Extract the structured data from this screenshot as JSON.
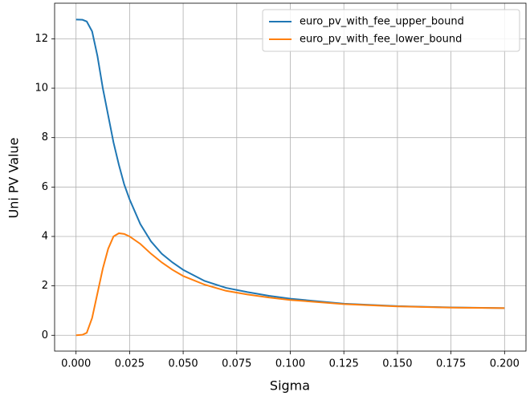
{
  "chart_data": {
    "type": "line",
    "xlabel": "Sigma",
    "ylabel": "Uni PV Value",
    "x": [
      0,
      0.003,
      0.005,
      0.0075,
      0.01,
      0.0125,
      0.015,
      0.0175,
      0.02,
      0.0225,
      0.025,
      0.03,
      0.035,
      0.04,
      0.045,
      0.05,
      0.06,
      0.07,
      0.08,
      0.09,
      0.1,
      0.125,
      0.15,
      0.175,
      0.2
    ],
    "series": [
      {
        "name": "euro_pv_with_fee_upper_bound",
        "color": "#1f77b4",
        "values": [
          12.78,
          12.77,
          12.7,
          12.3,
          11.3,
          10.0,
          8.9,
          7.8,
          6.9,
          6.1,
          5.5,
          4.5,
          3.8,
          3.3,
          2.95,
          2.65,
          2.2,
          1.92,
          1.75,
          1.6,
          1.48,
          1.28,
          1.18,
          1.13,
          1.1
        ]
      },
      {
        "name": "euro_pv_with_fee_lower_bound",
        "color": "#ff7f0e",
        "values": [
          0,
          0.02,
          0.1,
          0.7,
          1.7,
          2.7,
          3.5,
          4.0,
          4.13,
          4.1,
          4.0,
          3.7,
          3.3,
          2.95,
          2.65,
          2.4,
          2.05,
          1.8,
          1.65,
          1.53,
          1.43,
          1.26,
          1.17,
          1.12,
          1.1
        ]
      }
    ],
    "xlim": [
      -0.01,
      0.21
    ],
    "xticks": [
      {
        "value": 0,
        "label": "0.000"
      },
      0.025,
      {
        "value": 0.05,
        "label": "0.050"
      },
      0.075,
      {
        "value": 0.1,
        "label": "0.100"
      },
      0.125,
      {
        "value": 0.15,
        "label": "0.150"
      },
      0.175,
      {
        "value": 0.2,
        "label": "0.200"
      }
    ],
    "ylim": [
      -0.64,
      13.44
    ],
    "yticks": [
      0,
      2,
      4,
      6,
      8,
      10,
      12
    ],
    "grid": true,
    "legend": "upper right"
  }
}
